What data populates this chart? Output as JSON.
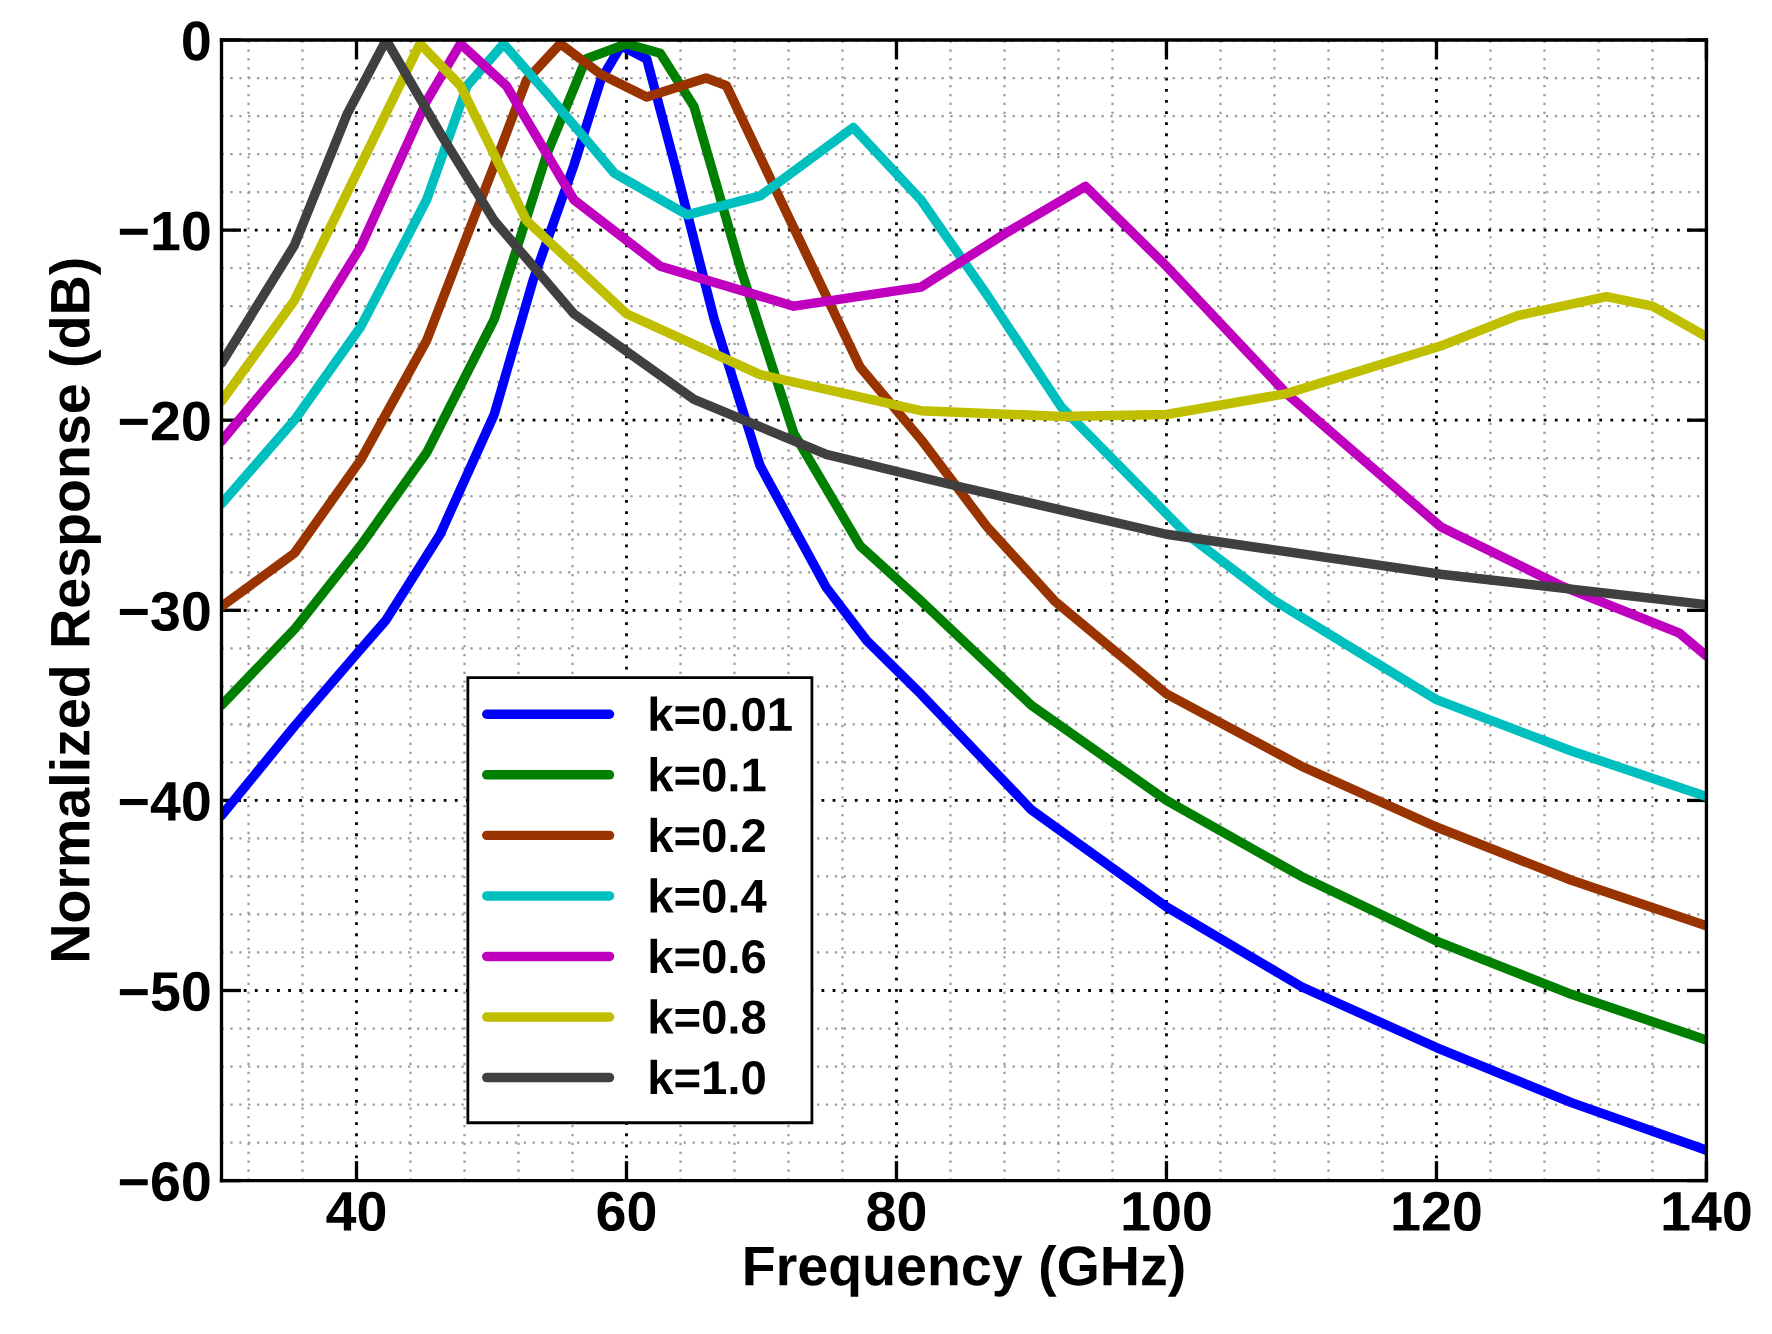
{
  "chart_data": {
    "type": "line",
    "xlabel": "Frequency (GHz)",
    "ylabel": "Normalized Response (dB)",
    "xlim": [
      30,
      140
    ],
    "ylim": [
      -60,
      0
    ],
    "xticks": [
      40,
      60,
      80,
      100,
      120,
      140
    ],
    "yticks": [
      {
        "value": -60,
        "label": "−60"
      },
      {
        "value": -50,
        "label": "−50"
      },
      {
        "value": -40,
        "label": "−40"
      },
      {
        "value": -30,
        "label": "−30"
      },
      {
        "value": -20,
        "label": "−20"
      },
      {
        "value": -10,
        "label": "−10"
      },
      0
    ],
    "grid": true,
    "legend": "bottom left",
    "marker": "none",
    "line_style": "solid",
    "series": [
      {
        "name": "k=0.01",
        "color": "#0000ff",
        "x": [
          30,
          35.4,
          40,
          42.2,
          46.2,
          50.2,
          53.1,
          56.1,
          58.1,
          59.6,
          61.5,
          63.6,
          66.5,
          69.9,
          74.8,
          77.8,
          81.8,
          90,
          100,
          110,
          120,
          130,
          140
        ],
        "values": [
          -40.8,
          -36.1,
          -32.3,
          -30.5,
          -26,
          -19.7,
          -12.6,
          -6.6,
          -2.1,
          -0.3,
          -1,
          -6.6,
          -14.7,
          -22.4,
          -28.8,
          -31.6,
          -34.4,
          -40.5,
          -45.6,
          -49.8,
          -53,
          -55.9,
          -58.4
        ]
      },
      {
        "name": "k=0.1",
        "color": "#007f00",
        "x": [
          30,
          35.4,
          40.3,
          45.2,
          50.2,
          54.1,
          57,
          60,
          62.5,
          65,
          68.4,
          72.4,
          77.3,
          81.8,
          90,
          100,
          110,
          120,
          130,
          140
        ],
        "values": [
          -35,
          -31,
          -26.6,
          -21.7,
          -14.7,
          -6,
          -1,
          -0.2,
          -0.7,
          -3.5,
          -11.9,
          -20.7,
          -26.6,
          -29.5,
          -35,
          -40,
          -44,
          -47.4,
          -50.2,
          -52.6
        ]
      },
      {
        "name": "k=0.2",
        "color": "#993300",
        "x": [
          30,
          35.4,
          40.3,
          45.2,
          50.2,
          52.6,
          55.1,
          58.1,
          61.5,
          65.9,
          67.4,
          71.4,
          77.3,
          81.8,
          86.7,
          91.7,
          100,
          110,
          120,
          130,
          140
        ],
        "values": [
          -29.8,
          -27,
          -22.1,
          -15.8,
          -6.6,
          -2.1,
          -0.2,
          -1.8,
          -3,
          -2,
          -2.4,
          -8.4,
          -17.2,
          -21,
          -25.6,
          -29.5,
          -34.4,
          -38.2,
          -41.4,
          -44.2,
          -46.6
        ]
      },
      {
        "name": "k=0.4",
        "color": "#00bfbf",
        "x": [
          30,
          35.4,
          40.3,
          45.2,
          48.2,
          50.9,
          54.1,
          59.1,
          64.5,
          69.9,
          76.8,
          81.8,
          86.7,
          92.2,
          101.5,
          108,
          120,
          130,
          140
        ],
        "values": [
          -24.4,
          -20,
          -15.1,
          -8.4,
          -2.4,
          -0.2,
          -2.8,
          -7,
          -9.2,
          -8.2,
          -4.6,
          -8.4,
          -13.4,
          -19.3,
          -26,
          -29.5,
          -34.7,
          -37.4,
          -39.8
        ]
      },
      {
        "name": "k=0.6",
        "color": "#bf00bf",
        "x": [
          30,
          35.4,
          40.3,
          45.2,
          47.7,
          51.1,
          56.1,
          62.5,
          72.4,
          81.8,
          88,
          94,
          100,
          108.9,
          120.3,
          129.2,
          138,
          140
        ],
        "values": [
          -21.1,
          -16.5,
          -10.9,
          -3.2,
          -0.2,
          -2.4,
          -8.4,
          -11.9,
          -14,
          -13,
          -10.2,
          -7.7,
          -11.9,
          -18.6,
          -25.6,
          -28.7,
          -31.2,
          -32.4
        ]
      },
      {
        "name": "k=0.8",
        "color": "#bfbf00",
        "x": [
          30,
          35.4,
          40.3,
          44.7,
          47.7,
          52.6,
          60,
          69.9,
          81.8,
          92.2,
          100,
          108.9,
          120.3,
          126,
          132.6,
          136,
          140
        ],
        "values": [
          -19,
          -13.7,
          -6.6,
          -0.2,
          -2.4,
          -9.5,
          -14.4,
          -17.6,
          -19.5,
          -19.8,
          -19.7,
          -18.6,
          -16.1,
          -14.5,
          -13.5,
          -14,
          -15.6
        ]
      },
      {
        "name": "k=1.0",
        "color": "#404040",
        "x": [
          30,
          35.4,
          39.3,
          42.2,
          46.2,
          50.2,
          56.1,
          65,
          74.8,
          84.7,
          100,
          120.3,
          140
        ],
        "values": [
          -17,
          -10.8,
          -3.9,
          0,
          -4.9,
          -9.5,
          -14.4,
          -18.9,
          -21.8,
          -23.5,
          -26,
          -28.1,
          -29.7
        ]
      }
    ]
  }
}
